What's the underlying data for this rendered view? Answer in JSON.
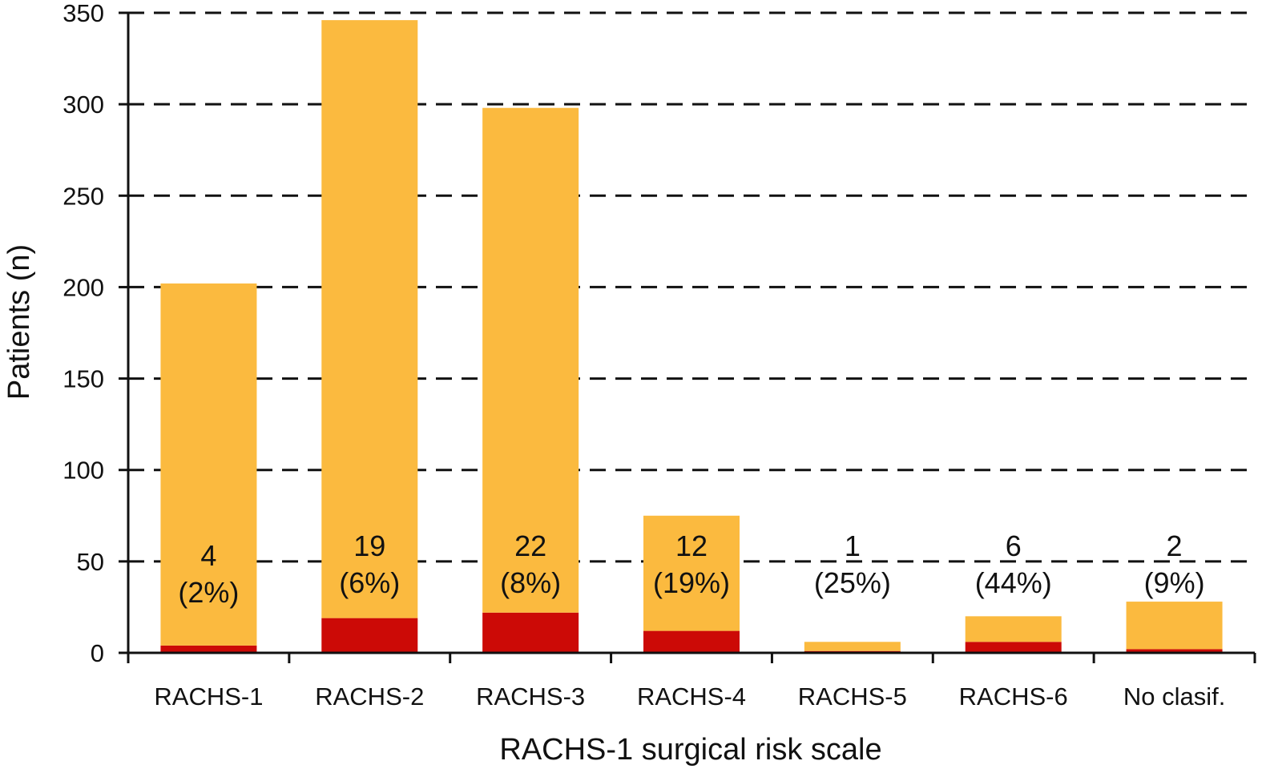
{
  "chart_data": {
    "type": "bar",
    "stacked": true,
    "title": "",
    "xlabel": "RACHS-1 surgical risk scale",
    "ylabel": "Patients (n)",
    "ylim": [
      0,
      350
    ],
    "yticks": [
      0,
      50,
      100,
      150,
      200,
      250,
      300,
      350
    ],
    "grid": "horizontal dashed",
    "legend": "none",
    "categories": [
      "RACHS-1",
      "RACHS-2",
      "RACHS-3",
      "RACHS-4",
      "RACHS-5",
      "RACHS-6",
      "No clasif."
    ],
    "series": [
      {
        "color": "#cc0a06",
        "values": [
          4,
          19,
          22,
          12,
          1,
          6,
          2
        ]
      },
      {
        "color": "#fbba3f",
        "values": [
          198,
          327,
          276,
          63,
          5,
          14,
          26
        ]
      }
    ],
    "totals": [
      202,
      346,
      298,
      75,
      6,
      20,
      28
    ],
    "data_labels": [
      {
        "count": "4",
        "pct": "(2%)"
      },
      {
        "count": "19",
        "pct": "(6%)"
      },
      {
        "count": "22",
        "pct": "(8%)"
      },
      {
        "count": "12",
        "pct": "(19%)"
      },
      {
        "count": "1",
        "pct": "(25%)"
      },
      {
        "count": "6",
        "pct": "(44%)"
      },
      {
        "count": "2",
        "pct": "(9%)"
      }
    ]
  }
}
